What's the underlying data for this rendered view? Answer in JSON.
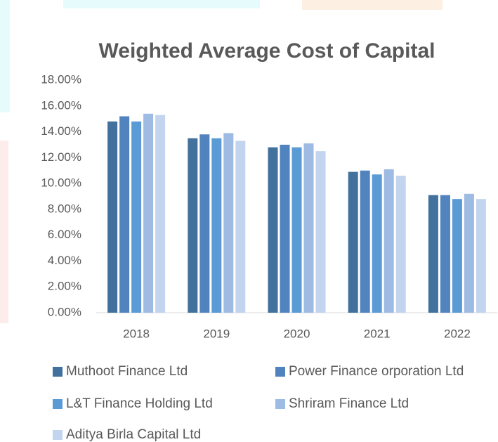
{
  "chart_data": {
    "type": "bar",
    "title": "Weighted Average Cost of Capital",
    "categories": [
      "2018",
      "2019",
      "2020",
      "2021",
      "2022"
    ],
    "series": [
      {
        "name": "Muthoot Finance Ltd",
        "color": "#41719c",
        "values": [
          14.8,
          13.5,
          12.8,
          10.9,
          9.1
        ]
      },
      {
        "name": "Power Finance orporation Ltd",
        "color": "#5183be",
        "values": [
          15.2,
          13.8,
          13.0,
          11.0,
          9.1
        ]
      },
      {
        "name": "L&T Finance Holding Ltd",
        "color": "#5b9bd5",
        "values": [
          14.8,
          13.5,
          12.8,
          10.7,
          8.8
        ]
      },
      {
        "name": "Shriram Finance Ltd",
        "color": "#9dbbe3",
        "values": [
          15.4,
          13.9,
          13.1,
          11.1,
          9.2
        ]
      },
      {
        "name": "Aditya Birla Capital Ltd",
        "color": "#c3d4ee",
        "values": [
          15.3,
          13.3,
          12.5,
          10.6,
          8.8
        ]
      }
    ],
    "ylim": [
      0,
      18
    ],
    "yticks": [
      {
        "value": 0,
        "label": "0.00%"
      },
      {
        "value": 2,
        "label": "2.00%"
      },
      {
        "value": 4,
        "label": "4.00%"
      },
      {
        "value": 6,
        "label": "6.00%"
      },
      {
        "value": 8,
        "label": "8.00%"
      },
      {
        "value": 10,
        "label": "10.00%"
      },
      {
        "value": 12,
        "label": "12.00%"
      },
      {
        "value": 14,
        "label": "14.00%"
      },
      {
        "value": 16,
        "label": "16.00%"
      },
      {
        "value": 18,
        "label": "18.00%"
      }
    ],
    "legend": "bottom"
  }
}
